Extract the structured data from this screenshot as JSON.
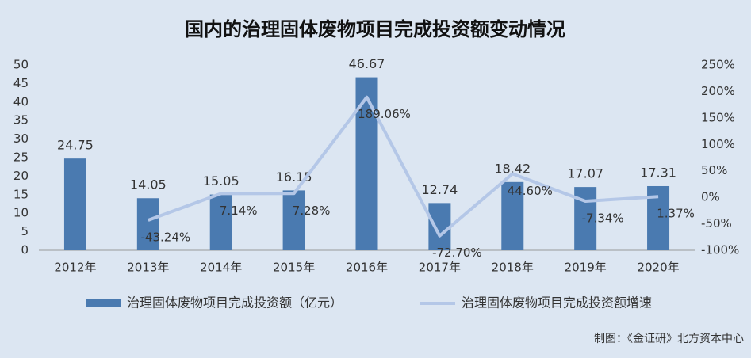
{
  "chart_data": {
    "type": "bar",
    "title": "国内的治理固体废物项目完成投资额变动情况",
    "note": "制图：《金证研》北方资本中心",
    "categories": [
      "2012年",
      "2013年",
      "2014年",
      "2015年",
      "2016年",
      "2017年",
      "2018年",
      "2019年",
      "2020年"
    ],
    "series": [
      {
        "name": "治理固体废物项目完成投资额（亿元）",
        "type": "bar",
        "color": "#4a7ab0",
        "values": [
          24.75,
          14.05,
          15.05,
          16.15,
          46.67,
          12.74,
          18.42,
          17.07,
          17.31
        ]
      },
      {
        "name": "治理固体废物项目完成投资额增速",
        "type": "line",
        "axis": "y2",
        "color": "#b4c7e7",
        "values": [
          null,
          -43.24,
          7.14,
          7.28,
          189.06,
          -72.7,
          44.6,
          -7.34,
          1.37
        ],
        "value_labels": [
          null,
          "-43.24%",
          "7.14%",
          "7.28%",
          "189.06%",
          "-72.70%",
          "44.60%",
          "-7.34%",
          "1.37%"
        ]
      }
    ],
    "ylim": [
      0,
      50
    ],
    "yticks": [
      0,
      5,
      10,
      15,
      20,
      25,
      30,
      35,
      40,
      45,
      50
    ],
    "y2lim": [
      -100,
      250
    ],
    "y2ticks": [
      {
        "value": -100,
        "label": "-100%"
      },
      {
        "value": -50,
        "label": "-50%"
      },
      {
        "value": 0,
        "label": "0%"
      },
      {
        "value": 50,
        "label": "50%"
      },
      {
        "value": 100,
        "label": "100%"
      },
      {
        "value": 150,
        "label": "150%"
      },
      {
        "value": 200,
        "label": "200%"
      },
      {
        "value": 250,
        "label": "250%"
      }
    ],
    "grid": false
  }
}
